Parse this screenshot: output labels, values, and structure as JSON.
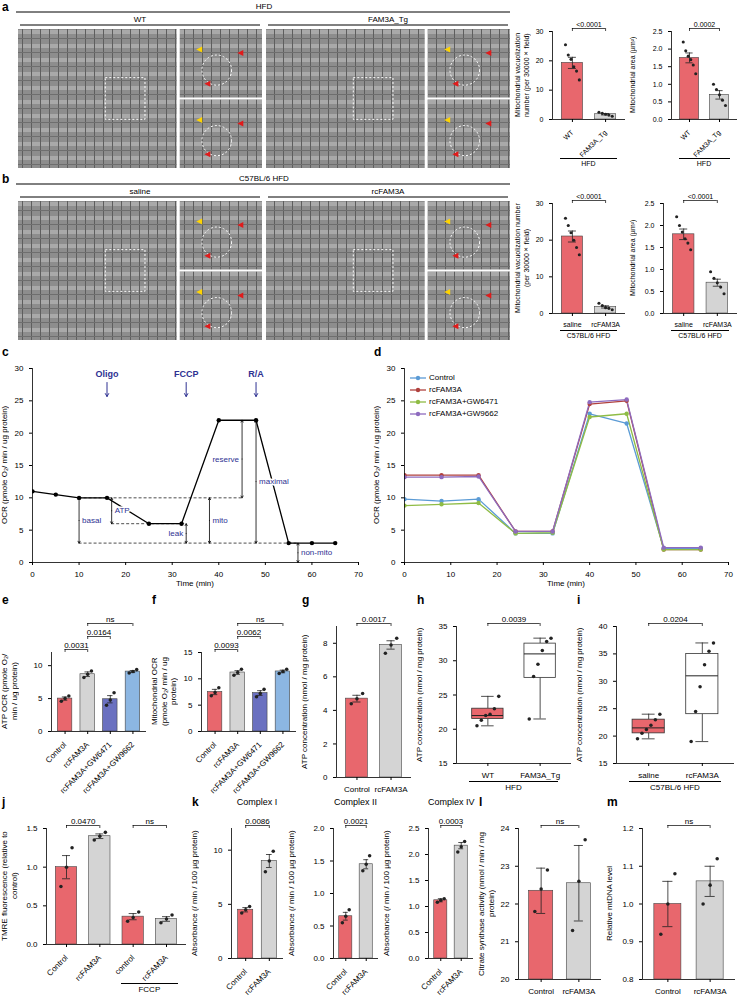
{
  "micrographs": [
    {
      "panel": "a",
      "group": "HFD",
      "conditions": [
        "WT",
        "FAM3A_Tg"
      ]
    },
    {
      "panel": "b",
      "group": "C57BL/6 HFD",
      "conditions": [
        "saline",
        "rcFAM3A"
      ]
    }
  ],
  "chart_data": [
    {
      "type": "bar",
      "ylabel": "Mitochondrial vacuolization number (per 30000× field)",
      "categories": [
        "WT",
        "FAM3A_Tg"
      ],
      "values": [
        19.3,
        1.8
      ],
      "errors": [
        1.9,
        0.25
      ],
      "points": [
        [
          25.5,
          22,
          20.5,
          18,
          16.5,
          13.5
        ],
        [
          2.5,
          2.1,
          1.8,
          1.5,
          1.1
        ]
      ],
      "colors": [
        "#e8676d",
        "#d4d4d4"
      ],
      "ylim": [
        0,
        30
      ],
      "yticks": [
        0,
        10,
        20,
        30
      ],
      "comparisons": [
        {
          "pair": [
            0,
            1
          ],
          "label": "<0.0001"
        }
      ],
      "groups": [
        {
          "label": "HFD",
          "categories": [
            0,
            1
          ]
        }
      ]
    },
    {
      "type": "bar",
      "ylabel": "Mitochondrial area (µm²)",
      "categories": [
        "WT",
        "FAM3A_Tg"
      ],
      "values": [
        1.75,
        0.7
      ],
      "errors": [
        0.14,
        0.12
      ],
      "points": [
        [
          2.2,
          1.95,
          1.8,
          1.7,
          1.55,
          1.3
        ],
        [
          1.0,
          0.85,
          0.7,
          0.55,
          0.4
        ]
      ],
      "colors": [
        "#e8676d",
        "#d4d4d4"
      ],
      "ylim": [
        0,
        2.5
      ],
      "yticks": [
        {
          "value": 0,
          "label": "0.0"
        },
        0.5,
        {
          "value": 1,
          "label": "1.0"
        },
        1.5,
        {
          "value": 2,
          "label": "2.0"
        },
        2.5
      ],
      "comparisons": [
        {
          "pair": [
            0,
            1
          ],
          "label": "0.0002"
        }
      ],
      "groups": [
        {
          "label": "HFD",
          "categories": [
            0,
            1
          ]
        }
      ]
    },
    {
      "type": "bar",
      "ylabel": "Mitochondrial vacuolization number (per 30000× field)",
      "categories": [
        "saline",
        "rcFAM3A"
      ],
      "values": [
        21,
        1.8
      ],
      "errors": [
        1.5,
        0.3
      ],
      "points": [
        [
          26,
          24,
          22,
          20,
          18,
          16
        ],
        [
          2.8,
          2.2,
          1.6,
          1.4,
          1.0
        ]
      ],
      "colors": [
        "#e8676d",
        "#d4d4d4"
      ],
      "ylim": [
        0,
        30
      ],
      "yticks": [
        0,
        10,
        20,
        30
      ],
      "comparisons": [
        {
          "pair": [
            0,
            1
          ],
          "label": "<0.0001"
        }
      ],
      "groups": [
        {
          "label": "C57BL/6 HFD",
          "categories": [
            0,
            1
          ]
        }
      ]
    },
    {
      "type": "bar",
      "ylabel": "Mitochondrial area (µm²)",
      "categories": [
        "saline",
        "rcFAM3A"
      ],
      "values": [
        1.8,
        0.7
      ],
      "errors": [
        0.12,
        0.08
      ],
      "points": [
        [
          2.2,
          2.0,
          1.85,
          1.7,
          1.6,
          1.45
        ],
        [
          0.95,
          0.8,
          0.7,
          0.6,
          0.45
        ]
      ],
      "colors": [
        "#e8676d",
        "#d4d4d4"
      ],
      "ylim": [
        0,
        2.5
      ],
      "yticks": [
        {
          "value": 0,
          "label": "0.0"
        },
        0.5,
        {
          "value": 1,
          "label": "1.0"
        },
        1.5,
        {
          "value": 2,
          "label": "2.0"
        },
        2.5
      ],
      "comparisons": [
        {
          "pair": [
            0,
            1
          ],
          "label": "<0.0001"
        }
      ],
      "groups": [
        {
          "label": "C57BL/6 HFD",
          "categories": [
            0,
            1
          ]
        }
      ]
    },
    {
      "type": "line",
      "panel": "c",
      "xlabel": "Time (min)",
      "ylabel": "OCR (pmole O₂/ min / ug protein)",
      "x": [
        0,
        5,
        10,
        16,
        25,
        32,
        40,
        48,
        55,
        60,
        65
      ],
      "values": [
        11,
        10.5,
        10,
        10,
        6,
        6,
        22,
        22,
        3,
        3,
        3
      ],
      "color": "#000000",
      "marker": "dot",
      "xlim": [
        0,
        70
      ],
      "xticks": [
        0,
        10,
        20,
        30,
        40,
        50,
        60,
        70
      ],
      "ylim": [
        0,
        30
      ],
      "yticks": [
        0,
        5,
        10,
        15,
        20,
        25,
        30
      ],
      "injections": [
        {
          "label": "Oligo",
          "x": 16
        },
        {
          "label": "FCCP",
          "x": 33
        },
        {
          "label": "R/A",
          "x": 48
        }
      ],
      "guides": [
        {
          "y": 10,
          "x1": 10,
          "x2": 45
        },
        {
          "y": 6,
          "x1": 17,
          "x2": 33
        },
        {
          "y": 3,
          "x1": 10,
          "x2": 57
        }
      ],
      "intervals": [
        {
          "label": "basal",
          "x": 10,
          "y1": 3,
          "y2": 10
        },
        {
          "label": "ATP",
          "x": 17,
          "y1": 6,
          "y2": 10
        },
        {
          "label": "leak",
          "x": 33,
          "y1": 3,
          "y2": 6
        },
        {
          "label": "mito",
          "x": 38,
          "y1": 3,
          "y2": 10
        },
        {
          "label": "reserve",
          "x": 45,
          "y1": 10,
          "y2": 22
        },
        {
          "label": "maximal",
          "x": 48,
          "y1": 3,
          "y2": 22
        },
        {
          "label": "non-mito",
          "x": 57,
          "y1": 0,
          "y2": 3
        }
      ]
    },
    {
      "type": "line",
      "panel": "d",
      "xlabel": "Time (min)",
      "ylabel": "OCR (pmole O₂/ min / ug protein)",
      "x": [
        0,
        8,
        16,
        24,
        32,
        40,
        48,
        56,
        64
      ],
      "marker": "dot",
      "legend": "top-left",
      "xlim": [
        0,
        70
      ],
      "xticks": [
        0,
        10,
        20,
        30,
        40,
        50,
        60,
        70
      ],
      "ylim": [
        0,
        30
      ],
      "yticks": [
        0,
        5,
        10,
        15,
        20,
        25,
        30
      ],
      "series": [
        {
          "name": "Control",
          "color": "#5b9bd5",
          "values": [
            9.8,
            9.5,
            9.8,
            4.5,
            4.5,
            23,
            21.5,
            2.2,
            2.2
          ]
        },
        {
          "name": "rcFAM3A",
          "color": "#b0413e",
          "values": [
            13.5,
            13.5,
            13.5,
            4.8,
            4.8,
            24.5,
            25,
            2,
            2
          ]
        },
        {
          "name": "rcFAM3A+GW6471",
          "color": "#8fbc45",
          "values": [
            8.8,
            9,
            9.2,
            4.5,
            4.6,
            22.5,
            23,
            2,
            2
          ]
        },
        {
          "name": "rcFAM3A+GW9662",
          "color": "#8e6bbf",
          "values": [
            13.2,
            13.2,
            13.3,
            4.8,
            4.8,
            24.8,
            25.2,
            2.3,
            2.3
          ]
        }
      ]
    },
    {
      "type": "bar",
      "panel": "e",
      "ylabel": "ATP OCR (pmole O₂/ min / ug protein)",
      "categories": [
        "Control",
        "rcFAM3A",
        "rcFAM3A+GW6471",
        "rcFAM3A+GW9662"
      ],
      "values": [
        5.0,
        8.7,
        4.9,
        9.1
      ],
      "errors": [
        0.25,
        0.35,
        0.55,
        0.15
      ],
      "points": [
        [
          4.6,
          5.0,
          5.4
        ],
        [
          8.2,
          8.7,
          9.2
        ],
        [
          4.0,
          4.8,
          5.9
        ],
        [
          8.9,
          9.1,
          9.4
        ]
      ],
      "colors": [
        "#e8676d",
        "#d4d4d4",
        "#6a70c0",
        "#8cb6e2"
      ],
      "ylim": [
        0,
        12
      ],
      "yticks": [
        0,
        5,
        10
      ],
      "comparisons": [
        {
          "pair": [
            0,
            1
          ],
          "label": "0.0031"
        },
        {
          "pair": [
            1,
            2
          ],
          "label": "0.0164"
        },
        {
          "pair": [
            1,
            3
          ],
          "label": "ns"
        }
      ]
    },
    {
      "type": "bar",
      "panel": "f",
      "ylabel": "Mitochondrial OCR (pmole O₂/ min / ug protein)",
      "categories": [
        "Control",
        "rcFAM3A",
        "rcFAM3A+GW6471",
        "rcFAM3A+GW9662"
      ],
      "values": [
        7.5,
        11.2,
        7.3,
        11.4
      ],
      "errors": [
        0.5,
        0.35,
        0.45,
        0.25
      ],
      "points": [
        [
          6.8,
          7.4,
          8.3
        ],
        [
          10.7,
          11.2,
          11.8
        ],
        [
          6.6,
          7.2,
          8.0
        ],
        [
          11.0,
          11.4,
          11.8
        ]
      ],
      "colors": [
        "#e8676d",
        "#d4d4d4",
        "#6a70c0",
        "#8cb6e2"
      ],
      "ylim": [
        0,
        15
      ],
      "yticks": [
        0,
        5,
        10,
        15
      ],
      "comparisons": [
        {
          "pair": [
            0,
            1
          ],
          "label": "0.0093"
        },
        {
          "pair": [
            1,
            2
          ],
          "label": "0.0062"
        },
        {
          "pair": [
            1,
            3
          ],
          "label": "ns"
        }
      ]
    },
    {
      "type": "bar",
      "panel": "g",
      "ylabel": "ATP concentration (nmol / mg protein)",
      "categories": [
        "Control",
        "rcFAM3A"
      ],
      "values": [
        4.7,
        7.9
      ],
      "errors": [
        0.2,
        0.25
      ],
      "points": [
        [
          4.4,
          4.7,
          5.0
        ],
        [
          7.4,
          7.9,
          8.3
        ]
      ],
      "colors": [
        "#e8676d",
        "#d4d4d4"
      ],
      "ylim": [
        0,
        9
      ],
      "yticks": [
        0,
        2,
        4,
        6,
        8
      ],
      "comparisons": [
        {
          "pair": [
            0,
            1
          ],
          "label": "0.0017"
        }
      ]
    },
    {
      "type": "box",
      "panel": "h",
      "ylabel": "ATP concentration (nmol / mg protein)",
      "categories": [
        "WT",
        "FAM3A_Tg"
      ],
      "boxes": [
        {
          "min": 20.5,
          "q1": 21.5,
          "median": 22,
          "q3": 23,
          "max": 24.8
        },
        {
          "min": 21.5,
          "q1": 27.5,
          "median": 31,
          "q3": 32.5,
          "max": 33.3
        }
      ],
      "points": [
        [
          20.5,
          21.3,
          22,
          22.2,
          23,
          24.8
        ],
        [
          21.5,
          27.7,
          29.5,
          31.5,
          32.8,
          33.3
        ]
      ],
      "colors": [
        "#e8676d",
        "#ffffff"
      ],
      "ylim": [
        15,
        35
      ],
      "yticks": [
        15,
        20,
        25,
        30,
        35
      ],
      "comparisons": [
        {
          "pair": [
            0,
            1
          ],
          "label": "0.0039"
        }
      ],
      "groups": [
        {
          "label": "HFD",
          "categories": [
            0,
            1
          ]
        }
      ]
    },
    {
      "type": "box",
      "panel": "i",
      "ylabel": "ATP concentration (nmol / mg protein)",
      "categories": [
        "saline",
        "rcFAM3A"
      ],
      "boxes": [
        {
          "min": 19.5,
          "q1": 20.5,
          "median": 21.5,
          "q3": 23,
          "max": 24
        },
        {
          "min": 19,
          "q1": 24,
          "median": 31,
          "q3": 35,
          "max": 37
        }
      ],
      "points": [
        [
          19.5,
          20.5,
          21.2,
          22,
          23,
          24
        ],
        [
          19,
          24.5,
          29,
          33,
          35.5,
          37
        ]
      ],
      "colors": [
        "#e8676d",
        "#ffffff"
      ],
      "ylim": [
        15,
        40
      ],
      "yticks": [
        15,
        20,
        25,
        30,
        35,
        40
      ],
      "comparisons": [
        {
          "pair": [
            0,
            1
          ],
          "label": "0.0204"
        }
      ],
      "groups": [
        {
          "label": "C57BL/6 HFD",
          "categories": [
            0,
            1
          ]
        }
      ]
    },
    {
      "type": "bar",
      "panel": "j",
      "ylabel": "TMRE fluorescence (relative to control)",
      "categories": [
        "Control",
        "rcFAM3A",
        "control",
        "rcFAM3A"
      ],
      "values": [
        1.0,
        1.4,
        0.36,
        0.33
      ],
      "errors": [
        0.15,
        0.03,
        0.04,
        0.03
      ],
      "points": [
        [
          0.75,
          1.0,
          1.25
        ],
        [
          1.35,
          1.4,
          1.45
        ],
        [
          0.3,
          0.35,
          0.42
        ],
        [
          0.28,
          0.33,
          0.38
        ]
      ],
      "colors": [
        "#e8676d",
        "#d4d4d4",
        "#e8676d",
        "#d4d4d4"
      ],
      "ylim": [
        0,
        1.5
      ],
      "yticks": [
        {
          "value": 0,
          "label": "0.0"
        },
        0.5,
        {
          "value": 1,
          "label": "1.0"
        },
        1.5
      ],
      "comparisons": [
        {
          "pair": [
            0,
            1
          ],
          "label": "0.0470"
        },
        {
          "pair": [
            2,
            3
          ],
          "label": "ns"
        }
      ],
      "groups": [
        {
          "label": "FCCP",
          "categories": [
            2,
            3
          ]
        }
      ]
    },
    {
      "type": "bar",
      "panel": "k",
      "title": "Complex I",
      "ylabel": "Absorbance (/ min / 100 µg protein)",
      "categories": [
        "Control",
        "rcFAM3A"
      ],
      "values": [
        4.5,
        9.0
      ],
      "errors": [
        0.2,
        0.6
      ],
      "points": [
        [
          4.2,
          4.5,
          4.8
        ],
        [
          8.0,
          9.0,
          9.9
        ]
      ],
      "colors": [
        "#e8676d",
        "#d4d4d4"
      ],
      "ylim": [
        0,
        12
      ],
      "yticks": [
        0,
        5,
        10
      ],
      "comparisons": [
        {
          "pair": [
            0,
            1
          ],
          "label": "0.0086"
        }
      ]
    },
    {
      "type": "bar",
      "title": "Complex II",
      "ylabel": "Absorbance (/ min / 100 µg protein)",
      "categories": [
        "Control",
        "rcFAM3A"
      ],
      "values": [
        0.65,
        1.45
      ],
      "errors": [
        0.06,
        0.07
      ],
      "points": [
        [
          0.55,
          0.65,
          0.75
        ],
        [
          1.35,
          1.45,
          1.58
        ]
      ],
      "colors": [
        "#e8676d",
        "#d4d4d4"
      ],
      "ylim": [
        0,
        2
      ],
      "yticks": [
        {
          "value": 0,
          "label": "0.0"
        },
        0.5,
        {
          "value": 1,
          "label": "1.0"
        },
        1.5,
        {
          "value": 2,
          "label": "2.0"
        }
      ],
      "comparisons": [
        {
          "pair": [
            0,
            1
          ],
          "label": "0.0021"
        }
      ]
    },
    {
      "type": "bar",
      "title": "Complex IV",
      "ylabel": "Absorbance (/ min / 100 µg protein)",
      "categories": [
        "Control",
        "rcFAM3A"
      ],
      "values": [
        1.12,
        2.17
      ],
      "errors": [
        0.03,
        0.06
      ],
      "points": [
        [
          1.08,
          1.12,
          1.15
        ],
        [
          2.05,
          2.15,
          2.25
        ]
      ],
      "colors": [
        "#e8676d",
        "#d4d4d4"
      ],
      "ylim": [
        0,
        2.5
      ],
      "yticks": [
        {
          "value": 0,
          "label": "0.0"
        },
        0.5,
        {
          "value": 1,
          "label": "1.0"
        },
        1.5,
        {
          "value": 2,
          "label": "2.0"
        },
        2.5
      ],
      "comparisons": [
        {
          "pair": [
            0,
            1
          ],
          "label": "0.0003"
        }
      ]
    },
    {
      "type": "bar",
      "panel": "l",
      "ylabel": "Citrate synthase activity (nmol / min / mg protein)",
      "categories": [
        "Control",
        "rcFAM3A"
      ],
      "values": [
        22.35,
        22.55
      ],
      "errors": [
        0.6,
        1.0
      ],
      "points": [
        [
          21.8,
          22.4,
          22.9
        ],
        [
          21.3,
          22.6,
          23.7
        ]
      ],
      "colors": [
        "#e8676d",
        "#d4d4d4"
      ],
      "ylim": [
        20,
        24
      ],
      "yticks": [
        20,
        21,
        22,
        23,
        24
      ],
      "comparisons": [
        {
          "pair": [
            0,
            1
          ],
          "label": "ns"
        }
      ]
    },
    {
      "type": "bar",
      "panel": "m",
      "ylabel": "Relative mtDNA level",
      "categories": [
        "Control",
        "rcFAM3A"
      ],
      "values": [
        1.0,
        1.06
      ],
      "errors": [
        0.06,
        0.04
      ],
      "points": [
        [
          0.92,
          1.0,
          1.08
        ],
        [
          1.0,
          1.05,
          1.12
        ]
      ],
      "colors": [
        "#e8676d",
        "#d4d4d4"
      ],
      "ylim": [
        0.8,
        1.2
      ],
      "yticks": [
        0.8,
        0.9,
        {
          "value": 1,
          "label": "1.0"
        },
        1.1,
        1.2
      ],
      "comparisons": [
        {
          "pair": [
            0,
            1
          ],
          "label": "ns"
        }
      ]
    }
  ]
}
